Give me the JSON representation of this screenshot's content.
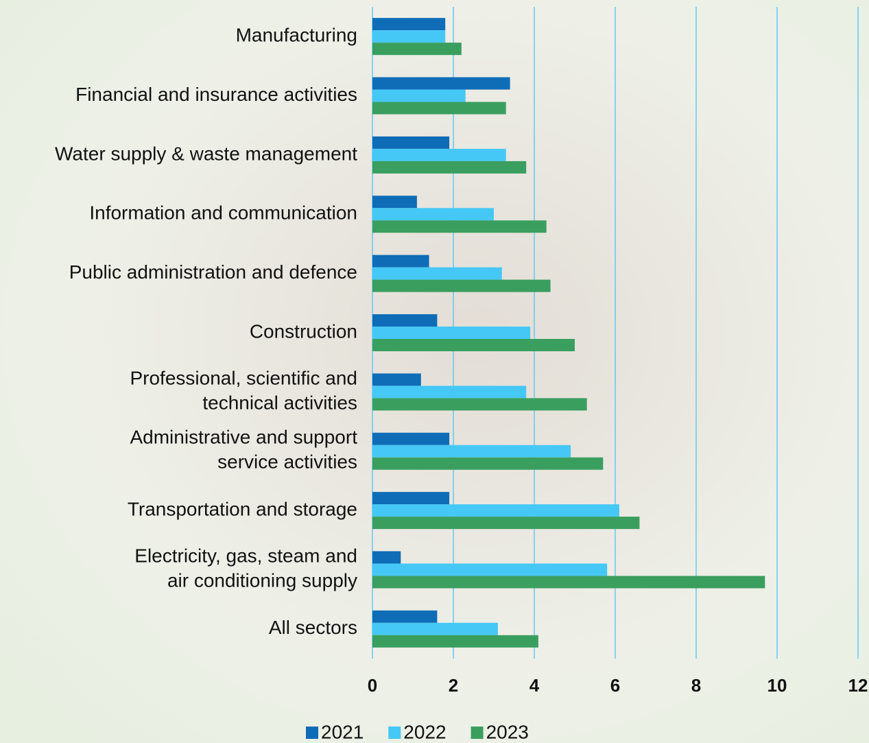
{
  "chart_data": {
    "type": "bar",
    "orientation": "horizontal",
    "categories": [
      "Manufacturing",
      "Financial and insurance activities",
      "Water supply & waste management",
      "Information and communication",
      "Public administration and defence",
      "Construction",
      "Professional, scientific and\ntechnical activities",
      "Administrative and support\nservice activities",
      "Transportation and storage",
      "Electricity, gas, steam and\nair conditioning supply",
      "All sectors"
    ],
    "series": [
      {
        "name": "2021",
        "color": "#0f6cb6",
        "values": [
          1.8,
          3.4,
          1.9,
          1.1,
          1.4,
          1.6,
          1.2,
          1.9,
          1.9,
          0.7,
          1.6
        ]
      },
      {
        "name": "2022",
        "color": "#45c8f5",
        "values": [
          1.8,
          2.3,
          3.3,
          3.0,
          3.2,
          3.9,
          3.8,
          4.9,
          6.1,
          5.8,
          3.1
        ]
      },
      {
        "name": "2023",
        "color": "#3a9e5f",
        "values": [
          2.2,
          3.3,
          3.8,
          4.3,
          4.4,
          5.0,
          5.3,
          5.7,
          6.6,
          9.7,
          4.1
        ]
      }
    ],
    "xlim": [
      0,
      12
    ],
    "xticks": [
      0,
      2,
      4,
      6,
      8,
      10,
      12
    ],
    "grid": true,
    "gridColor": "#4fc3f7",
    "legend": "bottom"
  }
}
